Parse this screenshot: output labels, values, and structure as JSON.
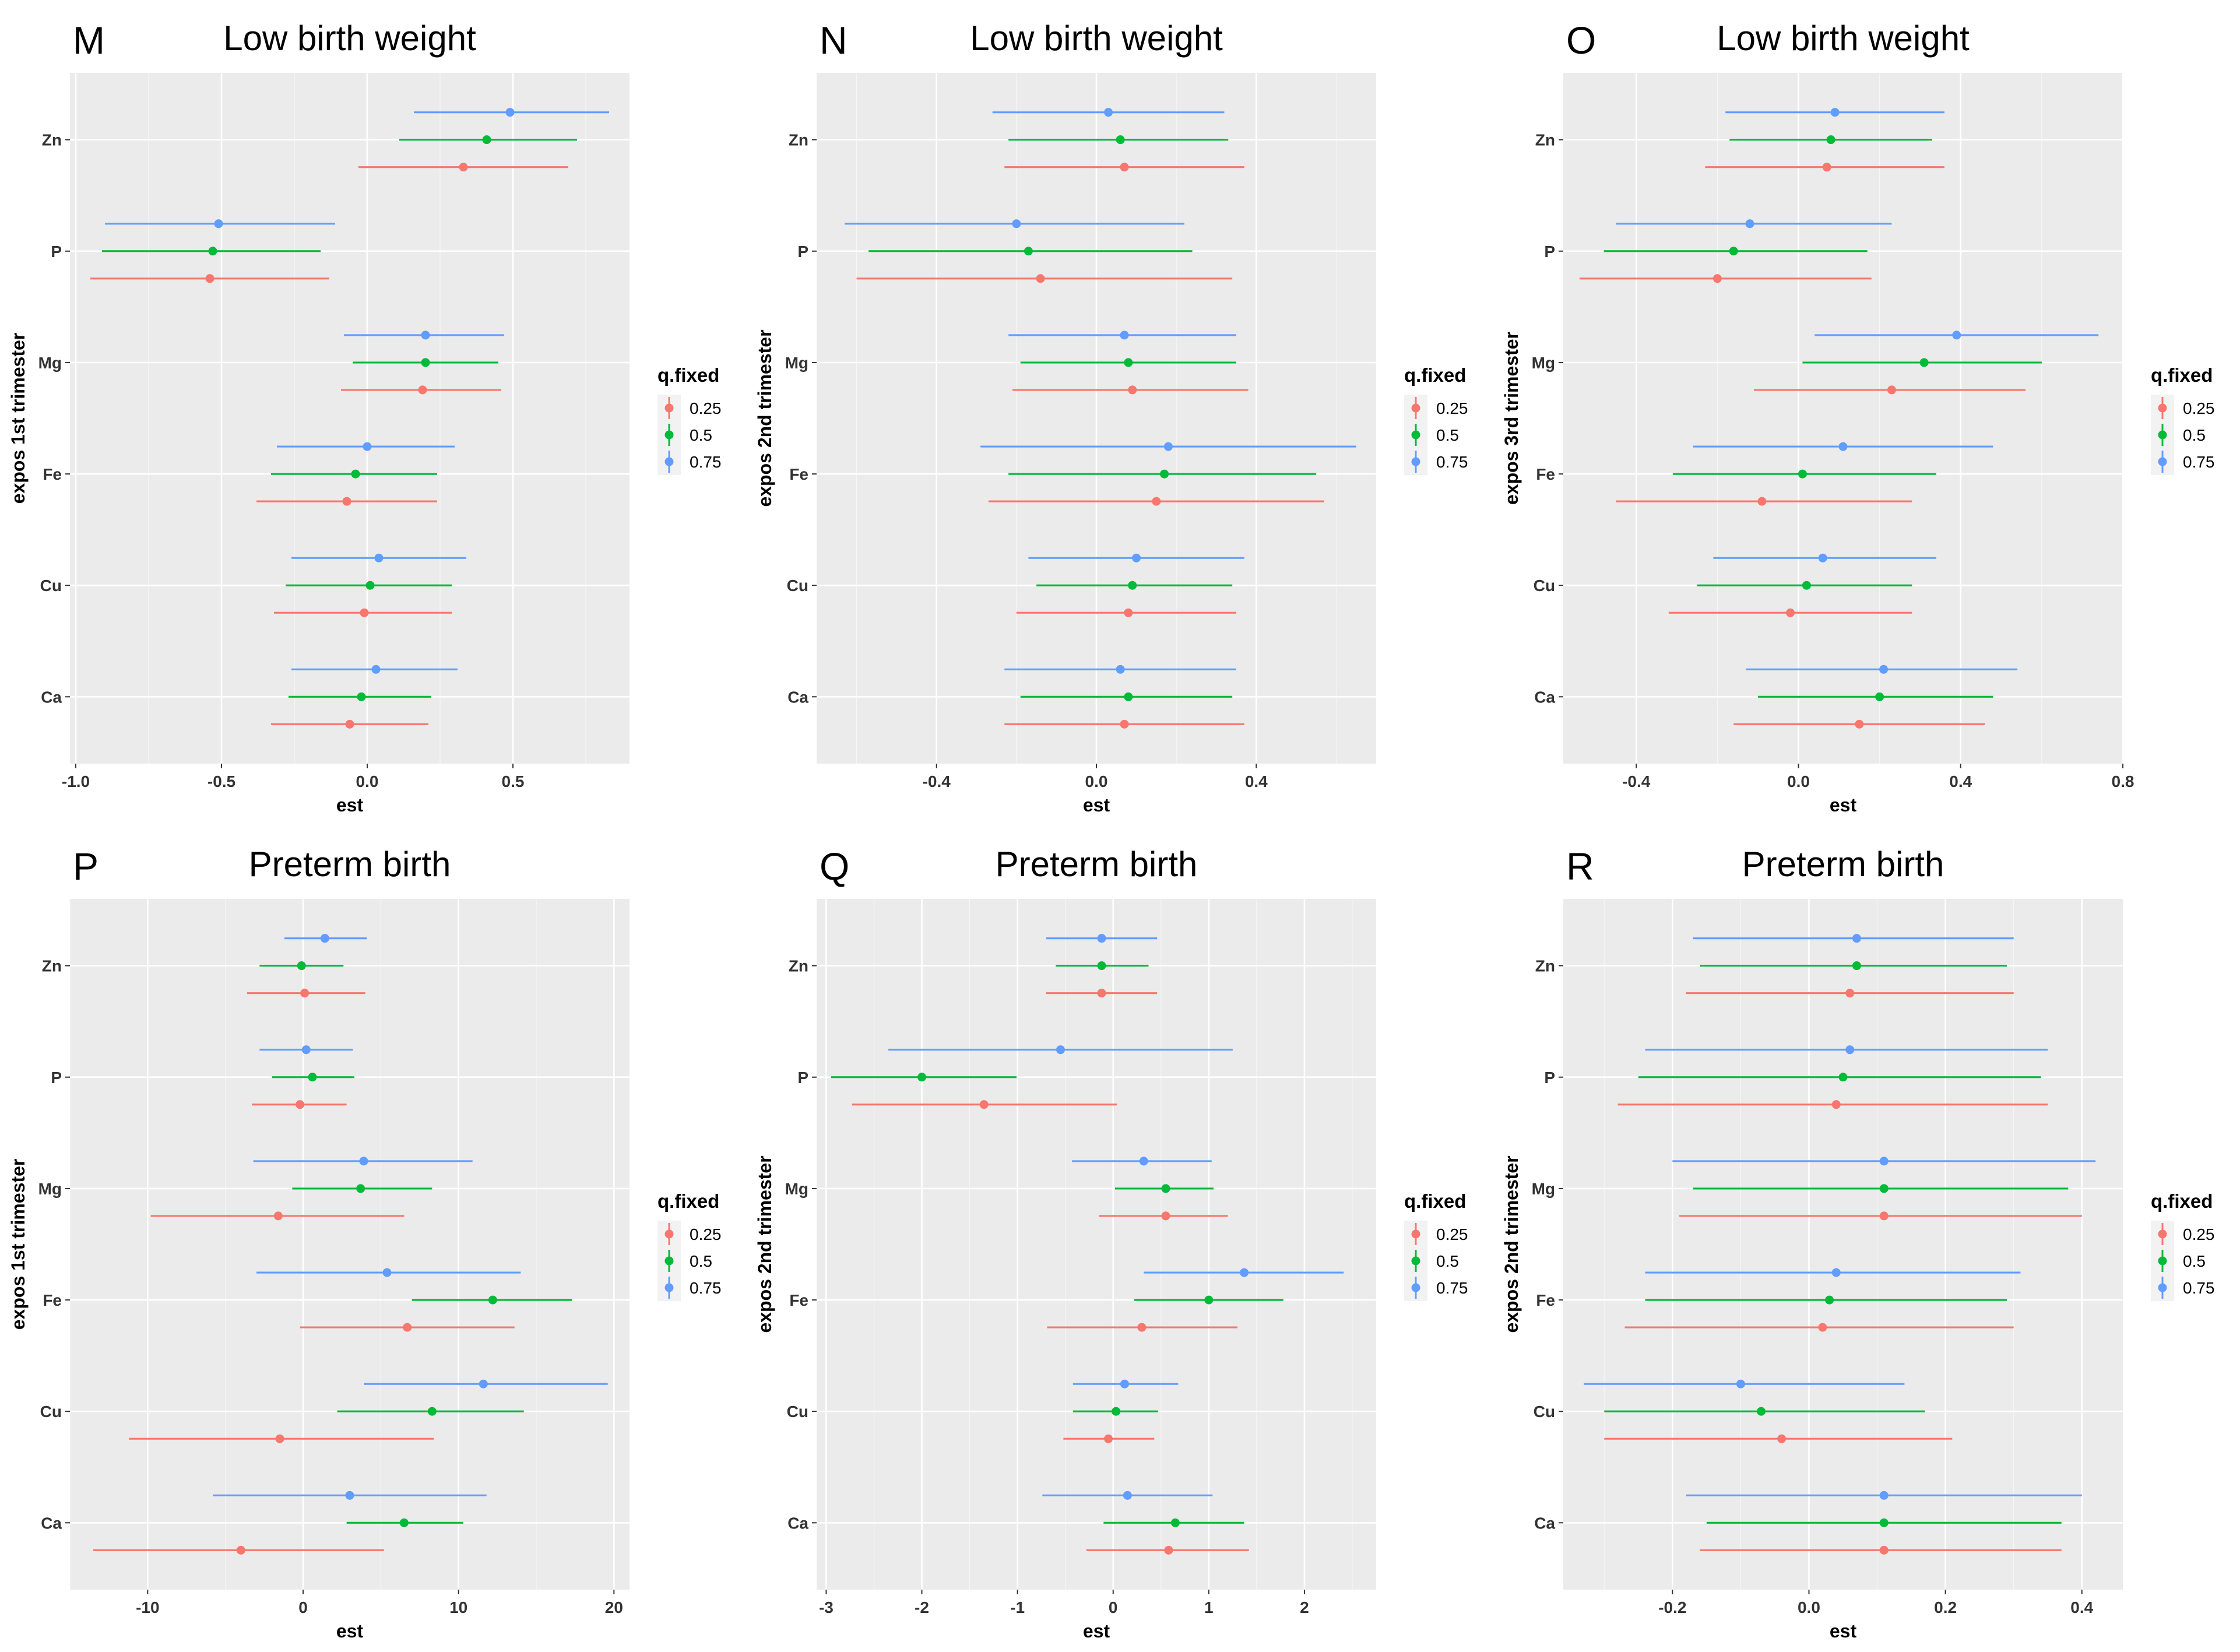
{
  "legend": {
    "title": "q.fixed",
    "entries": [
      "0.25",
      "0.5",
      "0.75"
    ],
    "colors": [
      "#F8766D",
      "#00BA38",
      "#619CFF"
    ]
  },
  "colors": {
    "panel_background": "#EBEBEB",
    "gridline": "#FFFFFF",
    "figure_background": "#FFFFFF"
  },
  "chart_data": [
    {
      "panel": "M",
      "title": "Low birth weight",
      "type": "interval",
      "xlabel": "est",
      "ylabel": "expos 1st trimester",
      "xlim": [
        -1.02,
        0.9
      ],
      "xticks": [
        -1.0,
        -0.5,
        0.0,
        0.5
      ],
      "xtick_labels": [
        "-1.0",
        "-0.5",
        "0.0",
        "0.5"
      ],
      "categories": [
        "Ca",
        "Cu",
        "Fe",
        "Mg",
        "P",
        "Zn"
      ],
      "series": [
        {
          "name": "0.25",
          "est": [
            -0.06,
            -0.01,
            -0.07,
            0.19,
            -0.54,
            0.33
          ],
          "lo": [
            -0.33,
            -0.32,
            -0.38,
            -0.09,
            -0.95,
            -0.03
          ],
          "hi": [
            0.21,
            0.29,
            0.24,
            0.46,
            -0.13,
            0.69
          ]
        },
        {
          "name": "0.5",
          "est": [
            -0.02,
            0.01,
            -0.04,
            0.2,
            -0.53,
            0.41
          ],
          "lo": [
            -0.27,
            -0.28,
            -0.33,
            -0.05,
            -0.91,
            0.11
          ],
          "hi": [
            0.22,
            0.29,
            0.24,
            0.45,
            -0.16,
            0.72
          ]
        },
        {
          "name": "0.75",
          "est": [
            0.03,
            0.04,
            0.0,
            0.2,
            -0.51,
            0.49
          ],
          "lo": [
            -0.26,
            -0.26,
            -0.31,
            -0.08,
            -0.9,
            0.16
          ],
          "hi": [
            0.31,
            0.34,
            0.3,
            0.47,
            -0.11,
            0.83
          ]
        }
      ]
    },
    {
      "panel": "N",
      "title": "Low birth weight",
      "type": "interval",
      "xlabel": "est",
      "ylabel": "expos 2nd trimester",
      "xlim": [
        -0.7,
        0.7
      ],
      "xticks": [
        -0.4,
        0.0,
        0.4
      ],
      "xtick_labels": [
        "-0.4",
        "0.0",
        "0.4"
      ],
      "categories": [
        "Ca",
        "Cu",
        "Fe",
        "Mg",
        "P",
        "Zn"
      ],
      "series": [
        {
          "name": "0.25",
          "est": [
            0.07,
            0.08,
            0.15,
            0.09,
            -0.14,
            0.07
          ],
          "lo": [
            -0.23,
            -0.2,
            -0.27,
            -0.21,
            -0.6,
            -0.23
          ],
          "hi": [
            0.37,
            0.35,
            0.57,
            0.38,
            0.34,
            0.37
          ]
        },
        {
          "name": "0.5",
          "est": [
            0.08,
            0.09,
            0.17,
            0.08,
            -0.17,
            0.06
          ],
          "lo": [
            -0.19,
            -0.15,
            -0.22,
            -0.19,
            -0.57,
            -0.22
          ],
          "hi": [
            0.34,
            0.34,
            0.55,
            0.35,
            0.24,
            0.33
          ]
        },
        {
          "name": "0.75",
          "est": [
            0.06,
            0.1,
            0.18,
            0.07,
            -0.2,
            0.03
          ],
          "lo": [
            -0.23,
            -0.17,
            -0.29,
            -0.22,
            -0.63,
            -0.26
          ],
          "hi": [
            0.35,
            0.37,
            0.65,
            0.35,
            0.22,
            0.32
          ]
        }
      ]
    },
    {
      "panel": "O",
      "title": "Low birth weight",
      "type": "interval",
      "xlabel": "est",
      "ylabel": "expos 3rd trimester",
      "xlim": [
        -0.58,
        0.8
      ],
      "xticks": [
        -0.4,
        0.0,
        0.4,
        0.8
      ],
      "xtick_labels": [
        "-0.4",
        "0.0",
        "0.4",
        "0.8"
      ],
      "categories": [
        "Ca",
        "Cu",
        "Fe",
        "Mg",
        "P",
        "Zn"
      ],
      "series": [
        {
          "name": "0.25",
          "est": [
            0.15,
            -0.02,
            -0.09,
            0.23,
            -0.2,
            0.07
          ],
          "lo": [
            -0.16,
            -0.32,
            -0.45,
            -0.11,
            -0.54,
            -0.23
          ],
          "hi": [
            0.46,
            0.28,
            0.28,
            0.56,
            0.18,
            0.36
          ]
        },
        {
          "name": "0.5",
          "est": [
            0.2,
            0.02,
            0.01,
            0.31,
            -0.16,
            0.08
          ],
          "lo": [
            -0.1,
            -0.25,
            -0.31,
            0.01,
            -0.48,
            -0.17
          ],
          "hi": [
            0.48,
            0.28,
            0.34,
            0.6,
            0.17,
            0.33
          ]
        },
        {
          "name": "0.75",
          "est": [
            0.21,
            0.06,
            0.11,
            0.39,
            -0.12,
            0.09
          ],
          "lo": [
            -0.13,
            -0.21,
            -0.26,
            0.04,
            -0.45,
            -0.18
          ],
          "hi": [
            0.54,
            0.34,
            0.48,
            0.74,
            0.23,
            0.36
          ]
        }
      ]
    },
    {
      "panel": "P",
      "title": "Preterm birth",
      "type": "interval",
      "xlabel": "est",
      "ylabel": "expos 1st trimester",
      "xlim": [
        -15,
        21
      ],
      "xticks": [
        -10,
        0,
        10,
        20
      ],
      "xtick_labels": [
        "-10",
        "0",
        "10",
        "20"
      ],
      "categories": [
        "Ca",
        "Cu",
        "Fe",
        "Mg",
        "P",
        "Zn"
      ],
      "series": [
        {
          "name": "0.25",
          "est": [
            -4.0,
            -1.5,
            6.7,
            -1.6,
            -0.2,
            0.1
          ],
          "lo": [
            -13.5,
            -11.2,
            -0.2,
            -9.8,
            -3.3,
            -3.6
          ],
          "hi": [
            5.2,
            8.4,
            13.6,
            6.5,
            2.8,
            4.0
          ]
        },
        {
          "name": "0.5",
          "est": [
            6.5,
            8.3,
            12.2,
            3.7,
            0.6,
            -0.1
          ],
          "lo": [
            2.8,
            2.2,
            7.0,
            -0.7,
            -2.0,
            -2.8
          ],
          "hi": [
            10.3,
            14.2,
            17.3,
            8.3,
            3.3,
            2.6
          ]
        },
        {
          "name": "0.75",
          "est": [
            3.0,
            11.6,
            5.4,
            3.9,
            0.2,
            1.4
          ],
          "lo": [
            -5.8,
            3.9,
            -3.0,
            -3.2,
            -2.8,
            -1.2
          ],
          "hi": [
            11.8,
            19.6,
            14.0,
            10.9,
            3.2,
            4.1
          ]
        }
      ]
    },
    {
      "panel": "Q",
      "title": "Preterm birth",
      "type": "interval",
      "xlabel": "est",
      "ylabel": "expos 2nd trimester",
      "xlim": [
        -3.1,
        2.75
      ],
      "xticks": [
        -3,
        -2,
        -1,
        0,
        1,
        2
      ],
      "xtick_labels": [
        "-3",
        "-2",
        "-1",
        "0",
        "1",
        "2"
      ],
      "categories": [
        "Ca",
        "Cu",
        "Fe",
        "Mg",
        "P",
        "Zn"
      ],
      "series": [
        {
          "name": "0.25",
          "est": [
            0.58,
            -0.05,
            0.3,
            0.55,
            -1.35,
            -0.12
          ],
          "lo": [
            -0.28,
            -0.52,
            -0.69,
            -0.15,
            -2.73,
            -0.7
          ],
          "hi": [
            1.42,
            0.43,
            1.3,
            1.2,
            0.04,
            0.46
          ]
        },
        {
          "name": "0.5",
          "est": [
            0.65,
            0.03,
            1.0,
            0.55,
            -2.0,
            -0.12
          ],
          "lo": [
            -0.1,
            -0.42,
            0.22,
            0.02,
            -2.95,
            -0.6
          ],
          "hi": [
            1.37,
            0.47,
            1.78,
            1.05,
            -1.01,
            0.37
          ]
        },
        {
          "name": "0.75",
          "est": [
            0.15,
            0.12,
            1.37,
            0.32,
            -0.55,
            -0.12
          ],
          "lo": [
            -0.74,
            -0.42,
            0.32,
            -0.43,
            -2.35,
            -0.7
          ],
          "hi": [
            1.04,
            0.68,
            2.41,
            1.03,
            1.25,
            0.46
          ]
        }
      ]
    },
    {
      "panel": "R",
      "title": "Preterm birth",
      "type": "interval",
      "xlabel": "est",
      "ylabel": "expos 2nd trimester",
      "xlim": [
        -0.36,
        0.46
      ],
      "xticks": [
        -0.2,
        0.0,
        0.2,
        0.4
      ],
      "xtick_labels": [
        "-0.2",
        "0.0",
        "0.2",
        "0.4"
      ],
      "categories": [
        "Ca",
        "Cu",
        "Fe",
        "Mg",
        "P",
        "Zn"
      ],
      "series": [
        {
          "name": "0.25",
          "est": [
            0.11,
            -0.04,
            0.02,
            0.11,
            0.04,
            0.06
          ],
          "lo": [
            -0.16,
            -0.3,
            -0.27,
            -0.19,
            -0.28,
            -0.18
          ],
          "hi": [
            0.37,
            0.21,
            0.3,
            0.4,
            0.35,
            0.3
          ]
        },
        {
          "name": "0.5",
          "est": [
            0.11,
            -0.07,
            0.03,
            0.11,
            0.05,
            0.07
          ],
          "lo": [
            -0.15,
            -0.3,
            -0.24,
            -0.17,
            -0.25,
            -0.16
          ],
          "hi": [
            0.37,
            0.17,
            0.29,
            0.38,
            0.34,
            0.29
          ]
        },
        {
          "name": "0.75",
          "est": [
            0.11,
            -0.1,
            0.04,
            0.11,
            0.06,
            0.07
          ],
          "lo": [
            -0.18,
            -0.33,
            -0.24,
            -0.2,
            -0.24,
            -0.17
          ],
          "hi": [
            0.4,
            0.14,
            0.31,
            0.42,
            0.35,
            0.3
          ]
        }
      ]
    }
  ]
}
